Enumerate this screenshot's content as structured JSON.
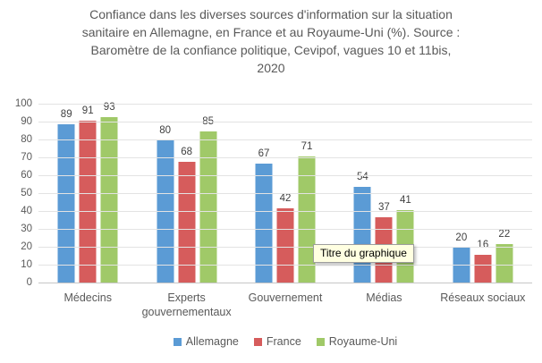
{
  "chart": {
    "title_lines": [
      "Confiance dans les diverses sources d'information sur la situation",
      "sanitaire en Allemagne, en France et au Royaume-Uni (%). Source :",
      "Baromètre de la confiance politique, Cevipof, vagues 10 et 11bis,",
      "2020"
    ],
    "tooltip_text": "Titre du graphique"
  },
  "chart_data": {
    "type": "bar",
    "title": "Confiance dans les diverses sources d'information sur la situation sanitaire en Allemagne, en France et au Royaume-Uni (%). Source : Baromètre de la confiance politique, Cevipof, vagues 10 et 11bis, 2020",
    "categories": [
      "Médecins",
      "Experts gouvernementaux",
      "Gouvernement",
      "Médias",
      "Réseaux sociaux"
    ],
    "series": [
      {
        "name": "Allemagne",
        "color": "#5B9BD5",
        "values": [
          89,
          80,
          67,
          54,
          20
        ]
      },
      {
        "name": "France",
        "color": "#D65C5C",
        "values": [
          91,
          68,
          42,
          37,
          16
        ]
      },
      {
        "name": "Royaume-Uni",
        "color": "#A0C968",
        "values": [
          93,
          85,
          71,
          41,
          22
        ]
      }
    ],
    "ylabel": "",
    "xlabel": "",
    "ylim": [
      0,
      100
    ],
    "ytick_step": 10,
    "grid": true,
    "legend_position": "bottom",
    "annotations": [
      {
        "text": "Titre du graphique",
        "kind": "tooltip"
      }
    ]
  }
}
